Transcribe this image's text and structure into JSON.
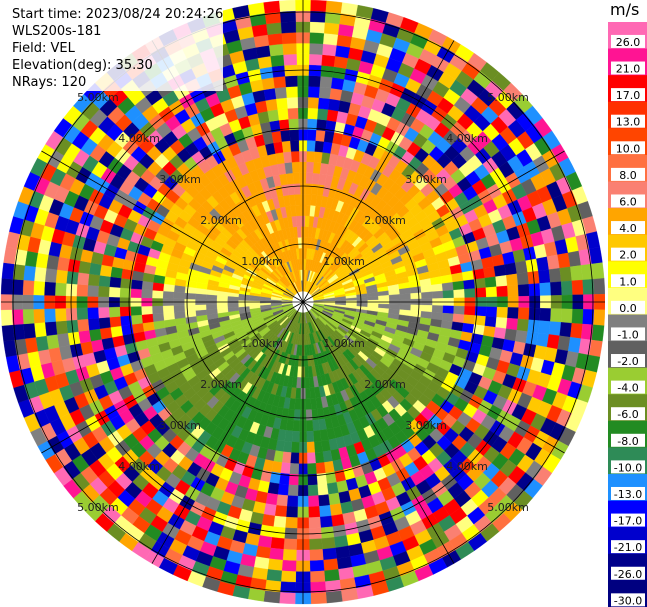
{
  "header": {
    "start_time": "Start time: 2023/08/24 20:24:26",
    "instrument": "WLS200s-181",
    "field": "Field: VEL",
    "elevation": "Elevation(deg): 35.30",
    "nrays": "NRays: 120"
  },
  "chart_data": {
    "type": "heatmap",
    "projection": "polar (PPI)",
    "field": "VEL",
    "units": "m/s",
    "range_ring_labels": [
      "1.00km",
      "2.00km",
      "3.00km",
      "4.00km",
      "5.00km"
    ],
    "colorbar": {
      "unit_label": "m/s",
      "ticks": [
        "26.0",
        "21.0",
        "17.0",
        "13.0",
        "10.0",
        "8.0",
        "6.0",
        "4.0",
        "2.0",
        "1.0",
        "0.0",
        "-1.0",
        "-2.0",
        "-4.0",
        "-6.0",
        "-8.0",
        "-10.0",
        "-13.0",
        "-17.0",
        "-21.0",
        "-26.0",
        "-30.0"
      ],
      "colors": [
        "#ff69b4",
        "#ff1493",
        "#ff0000",
        "#ff3000",
        "#ff4500",
        "#ff7040",
        "#fa8072",
        "#ffa500",
        "#ffc800",
        "#ffff00",
        "#ffff80",
        "#808080",
        "#606060",
        "#9acd32",
        "#6b8e23",
        "#228b22",
        "#2e8b57",
        "#1e90ff",
        "#0000ff",
        "#0000cd",
        "#00008b",
        "#000080"
      ]
    }
  }
}
